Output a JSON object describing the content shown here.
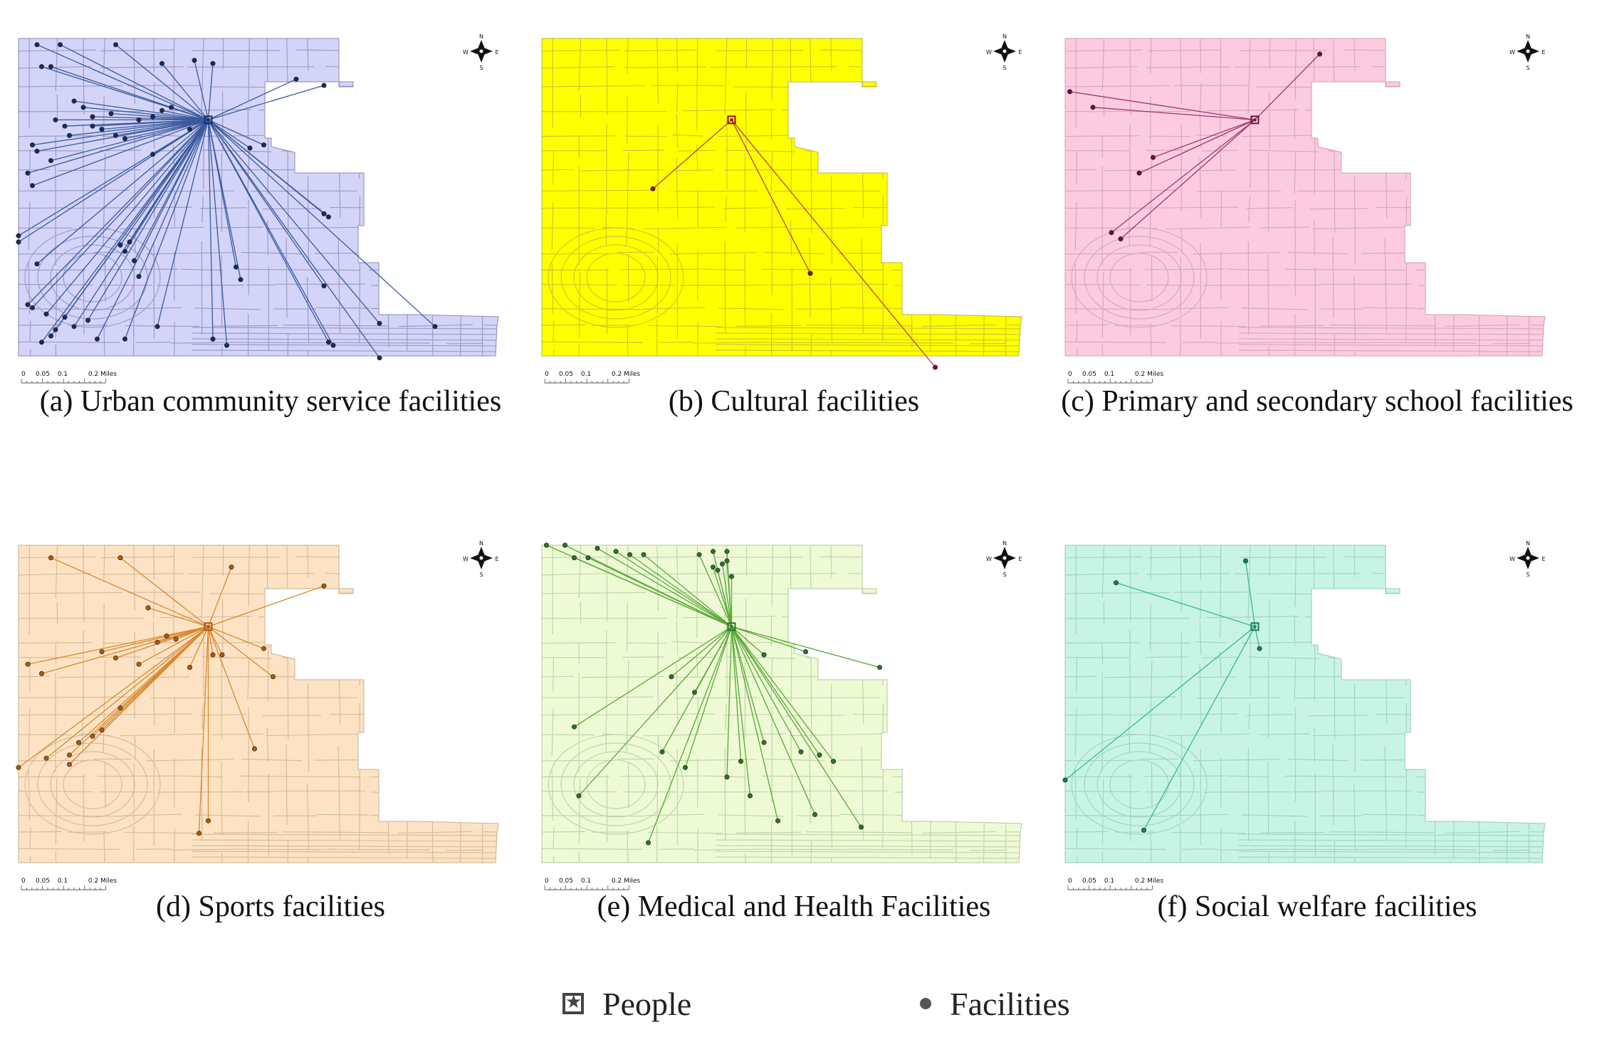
{
  "panels": [
    {
      "id": "a",
      "caption": "(a) Urban community service facilities",
      "fill": "#d4d4f8",
      "line": "#3a5a9c",
      "dot": "#1c2a5a",
      "outline": "#8a8ab8",
      "people": [
        0.41,
        0.26
      ],
      "facilities": [
        [
          0.04,
          0.02
        ],
        [
          0.09,
          0.02
        ],
        [
          0.21,
          0.02
        ],
        [
          0.31,
          0.08
        ],
        [
          0.05,
          0.09
        ],
        [
          0.07,
          0.09
        ],
        [
          0.38,
          0.07
        ],
        [
          0.42,
          0.08
        ],
        [
          0.6,
          0.13
        ],
        [
          0.66,
          0.15
        ],
        [
          0.12,
          0.2
        ],
        [
          0.14,
          0.22
        ],
        [
          0.16,
          0.25
        ],
        [
          0.2,
          0.24
        ],
        [
          0.26,
          0.26
        ],
        [
          0.29,
          0.25
        ],
        [
          0.31,
          0.23
        ],
        [
          0.33,
          0.22
        ],
        [
          0.16,
          0.28
        ],
        [
          0.18,
          0.29
        ],
        [
          0.21,
          0.31
        ],
        [
          0.23,
          0.32
        ],
        [
          0.08,
          0.26
        ],
        [
          0.1,
          0.28
        ],
        [
          0.11,
          0.31
        ],
        [
          0.03,
          0.34
        ],
        [
          0.04,
          0.36
        ],
        [
          0.07,
          0.39
        ],
        [
          0.29,
          0.37
        ],
        [
          0.37,
          0.29
        ],
        [
          0.5,
          0.35
        ],
        [
          0.53,
          0.34
        ],
        [
          0.02,
          0.43
        ],
        [
          0.03,
          0.47
        ],
        [
          0.66,
          0.56
        ],
        [
          0.67,
          0.57
        ],
        [
          0.0,
          0.63
        ],
        [
          0.0,
          0.65
        ],
        [
          0.22,
          0.66
        ],
        [
          0.23,
          0.68
        ],
        [
          0.24,
          0.65
        ],
        [
          0.25,
          0.71
        ],
        [
          0.04,
          0.72
        ],
        [
          0.26,
          0.76
        ],
        [
          0.48,
          0.77
        ],
        [
          0.47,
          0.73
        ],
        [
          0.66,
          0.79
        ],
        [
          0.06,
          0.88
        ],
        [
          0.1,
          0.89
        ],
        [
          0.12,
          0.92
        ],
        [
          0.15,
          0.9
        ],
        [
          0.08,
          0.93
        ],
        [
          0.05,
          0.97
        ],
        [
          0.17,
          0.96
        ],
        [
          0.23,
          0.96
        ],
        [
          0.3,
          0.92
        ],
        [
          0.42,
          0.96
        ],
        [
          0.45,
          0.98
        ],
        [
          0.67,
          0.97
        ],
        [
          0.68,
          0.98
        ],
        [
          0.78,
          0.91
        ],
        [
          0.9,
          0.92
        ],
        [
          0.02,
          0.85
        ],
        [
          0.03,
          0.86
        ],
        [
          0.07,
          0.95
        ],
        [
          0.78,
          1.02
        ]
      ]
    },
    {
      "id": "b",
      "caption": "(b) Cultural facilities",
      "fill": "#ffff00",
      "line": "#c0404a",
      "dot": "#8a1020",
      "outline": "#b8b840",
      "people": [
        0.41,
        0.26
      ],
      "facilities": [
        [
          0.24,
          0.48
        ],
        [
          0.58,
          0.75
        ],
        [
          0.85,
          1.05
        ]
      ]
    },
    {
      "id": "c",
      "caption": "(c) Primary and secondary school facilities",
      "fill": "#fccbe0",
      "line": "#9a3a70",
      "dot": "#6a1040",
      "outline": "#c8a0b4",
      "people": [
        0.41,
        0.26
      ],
      "facilities": [
        [
          0.55,
          0.05
        ],
        [
          0.01,
          0.17
        ],
        [
          0.06,
          0.22
        ],
        [
          0.19,
          0.38
        ],
        [
          0.16,
          0.43
        ],
        [
          0.1,
          0.62
        ],
        [
          0.12,
          0.64
        ]
      ]
    },
    {
      "id": "d",
      "caption": "(d) Sports facilities",
      "fill": "#fde3c4",
      "line": "#d88830",
      "dot": "#a85a10",
      "outline": "#c8b090",
      "people": [
        0.41,
        0.26
      ],
      "facilities": [
        [
          0.07,
          0.04
        ],
        [
          0.22,
          0.04
        ],
        [
          0.46,
          0.07
        ],
        [
          0.66,
          0.13
        ],
        [
          0.28,
          0.2
        ],
        [
          0.32,
          0.29
        ],
        [
          0.3,
          0.31
        ],
        [
          0.34,
          0.3
        ],
        [
          0.18,
          0.34
        ],
        [
          0.21,
          0.36
        ],
        [
          0.26,
          0.38
        ],
        [
          0.42,
          0.35
        ],
        [
          0.44,
          0.35
        ],
        [
          0.53,
          0.33
        ],
        [
          0.55,
          0.42
        ],
        [
          0.02,
          0.38
        ],
        [
          0.05,
          0.41
        ],
        [
          0.37,
          0.39
        ],
        [
          0.22,
          0.52
        ],
        [
          0.18,
          0.59
        ],
        [
          0.16,
          0.61
        ],
        [
          0.13,
          0.63
        ],
        [
          0.11,
          0.67
        ],
        [
          0.06,
          0.68
        ],
        [
          0.0,
          0.71
        ],
        [
          0.11,
          0.7
        ],
        [
          0.51,
          0.65
        ],
        [
          0.41,
          0.88
        ],
        [
          0.39,
          0.92
        ]
      ]
    },
    {
      "id": "e",
      "caption": "(e) Medical and Health Facilities",
      "fill": "#eefad4",
      "line": "#58a838",
      "dot": "#2e7028",
      "outline": "#b4c8a0",
      "people": [
        0.41,
        0.26
      ],
      "facilities": [
        [
          0.01,
          0.0
        ],
        [
          0.05,
          0.0
        ],
        [
          0.07,
          0.04
        ],
        [
          0.1,
          0.04
        ],
        [
          0.12,
          0.01
        ],
        [
          0.16,
          0.02
        ],
        [
          0.19,
          0.03
        ],
        [
          0.22,
          0.03
        ],
        [
          0.37,
          0.07
        ],
        [
          0.38,
          0.08
        ],
        [
          0.39,
          0.06
        ],
        [
          0.4,
          0.05
        ],
        [
          0.41,
          0.1
        ],
        [
          0.4,
          0.02
        ],
        [
          0.37,
          0.02
        ],
        [
          0.34,
          0.03
        ],
        [
          0.48,
          0.35
        ],
        [
          0.57,
          0.34
        ],
        [
          0.73,
          0.39
        ],
        [
          0.28,
          0.42
        ],
        [
          0.33,
          0.47
        ],
        [
          0.07,
          0.58
        ],
        [
          0.26,
          0.66
        ],
        [
          0.31,
          0.71
        ],
        [
          0.4,
          0.74
        ],
        [
          0.43,
          0.69
        ],
        [
          0.48,
          0.63
        ],
        [
          0.56,
          0.66
        ],
        [
          0.6,
          0.67
        ],
        [
          0.63,
          0.69
        ],
        [
          0.08,
          0.8
        ],
        [
          0.45,
          0.8
        ],
        [
          0.51,
          0.88
        ],
        [
          0.59,
          0.86
        ],
        [
          0.69,
          0.9
        ],
        [
          0.23,
          0.95
        ]
      ]
    },
    {
      "id": "f",
      "caption": "(f) Social welfare facilities",
      "fill": "#c8f4e6",
      "line": "#38b890",
      "dot": "#1a7a5a",
      "outline": "#98c8b8",
      "people": [
        0.41,
        0.26
      ],
      "facilities": [
        [
          0.39,
          0.05
        ],
        [
          0.11,
          0.12
        ],
        [
          0.42,
          0.33
        ],
        [
          0.0,
          0.75
        ],
        [
          0.17,
          0.91
        ]
      ]
    }
  ],
  "scale": {
    "ticks": [
      "0",
      "0.05",
      "0.1",
      "0.2 Miles"
    ]
  },
  "compass": {
    "n": "N",
    "s": "S",
    "e": "E",
    "w": "W"
  },
  "legend": {
    "people": "People",
    "facilities": "Facilities"
  }
}
